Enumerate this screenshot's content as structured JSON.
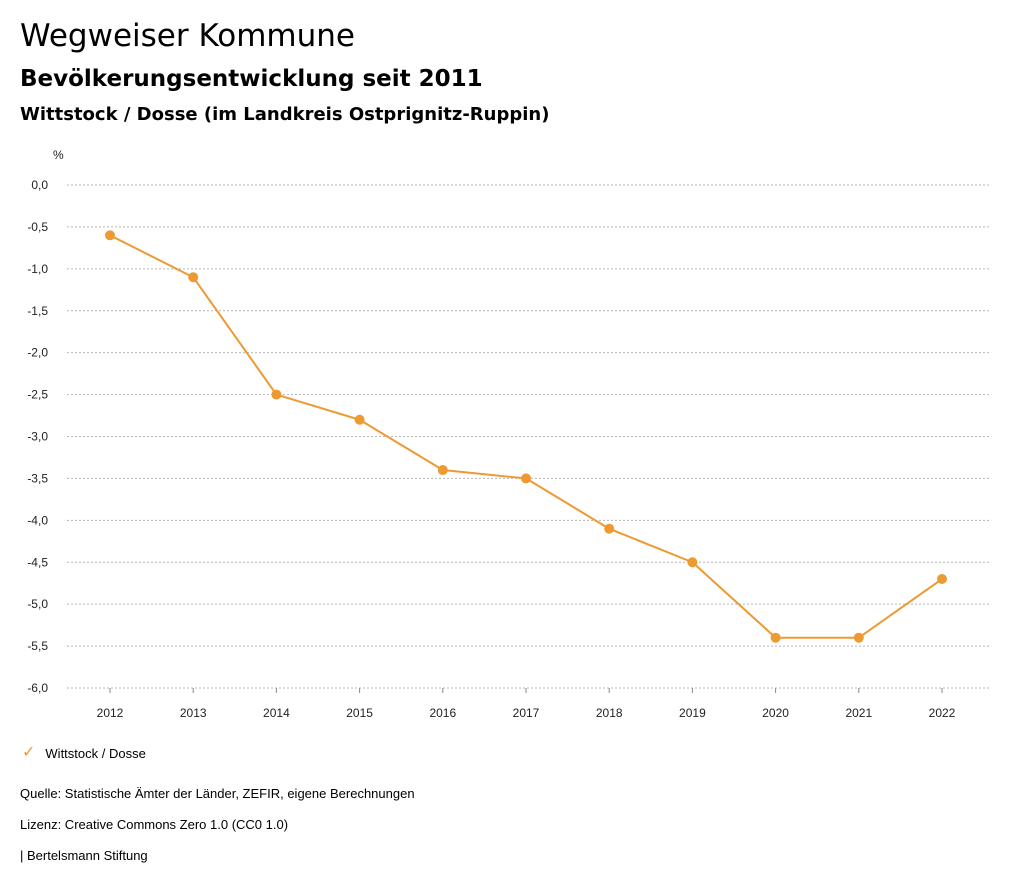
{
  "header": {
    "title": "Wegweiser Kommune",
    "subtitle": "Bevölkerungsentwicklung seit 2011",
    "region": "Wittstock / Dosse (im Landkreis Ostprignitz-Ruppin)"
  },
  "chart_data": {
    "type": "line",
    "ylabel": "%",
    "ylim": [
      -6.0,
      0.0
    ],
    "yticks": [
      "0,0",
      "-0,5",
      "-1,0",
      "-1,5",
      "-2,0",
      "-2,5",
      "-3,0",
      "-3,5",
      "-4,0",
      "-4,5",
      "-5,0",
      "-5,5",
      "-6,0"
    ],
    "x": [
      "2012",
      "2013",
      "2014",
      "2015",
      "2016",
      "2017",
      "2018",
      "2019",
      "2020",
      "2021",
      "2022"
    ],
    "series": [
      {
        "name": "Wittstock / Dosse",
        "color": "#ee9a33",
        "values": [
          -0.6,
          -1.1,
          -2.5,
          -2.8,
          -3.4,
          -3.5,
          -4.1,
          -4.5,
          -5.4,
          -5.4,
          -4.7
        ]
      }
    ],
    "grid": true,
    "legend_position": "bottom-left"
  },
  "legend": {
    "icon": "checkmark-icon",
    "label": "Wittstock / Dosse"
  },
  "footer": {
    "source": "Quelle: Statistische Ämter der Länder, ZEFIR, eigene Berechnungen",
    "license": "Lizenz: Creative Commons Zero 1.0 (CC0 1.0)",
    "publisher": "| Bertelsmann Stiftung"
  }
}
